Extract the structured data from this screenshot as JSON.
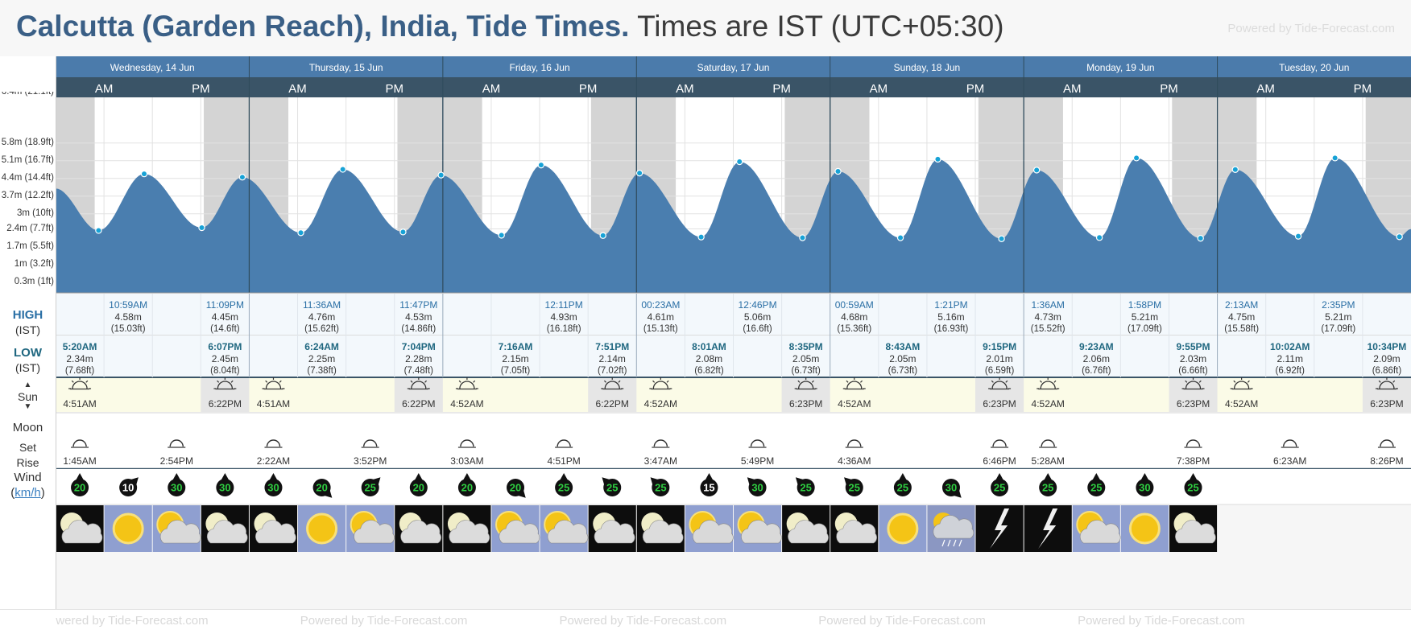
{
  "header": {
    "title_bold": "Calcutta (Garden Reach), India, Tide Times.",
    "title_rest": "Times are IST (UTC+05:30)",
    "powered": "Powered by Tide-Forecast.com"
  },
  "days": [
    {
      "label": "Wednesday, 14 Jun"
    },
    {
      "label": "Thursday, 15 Jun"
    },
    {
      "label": "Friday, 16 Jun"
    },
    {
      "label": "Saturday, 17 Jun"
    },
    {
      "label": "Sunday, 18 Jun"
    },
    {
      "label": "Monday, 19 Jun"
    },
    {
      "label": "Tuesday, 20 Jun"
    }
  ],
  "am": "AM",
  "pm": "PM",
  "labels": {
    "high": "HIGH",
    "low": "LOW",
    "tz": "(IST)",
    "sun": "Sun",
    "moon": "Moon",
    "set": "Set",
    "rise": "Rise",
    "wind": "Wind",
    "wind_unit": "km/h",
    "wind_open": "(",
    "wind_close": ")"
  },
  "chart_data": {
    "type": "area",
    "xlabel": "",
    "ylabel": "",
    "y_ticks": [
      "0.3m (1ft)",
      "1m (3.2ft)",
      "1.7m (5.5ft)",
      "2.4m (7.7ft)",
      "3m (10ft)",
      "3.7m (12.2ft)",
      "4.4m (14.4ft)",
      "5.1m (16.7ft)",
      "5.8m (18.9ft)"
    ],
    "y_tick_values": [
      0.3,
      1.0,
      1.7,
      2.4,
      3.0,
      3.7,
      4.4,
      5.1,
      5.8
    ],
    "y_top_tick": "6.4m (21.1ft)",
    "ylim": [
      0.3,
      6.4
    ],
    "x_range_hours": [
      0,
      168
    ],
    "series": [
      {
        "points": [
          {
            "h": 0,
            "m": 4.0
          },
          {
            "h": 5.33,
            "m": 2.34
          },
          {
            "h": 10.98,
            "m": 4.58
          },
          {
            "h": 18.12,
            "m": 2.45
          },
          {
            "h": 23.15,
            "m": 4.45
          },
          {
            "h": 30.4,
            "m": 2.25
          },
          {
            "h": 35.6,
            "m": 4.76
          },
          {
            "h": 43.07,
            "m": 2.28
          },
          {
            "h": 47.78,
            "m": 4.53
          },
          {
            "h": 55.27,
            "m": 2.15
          },
          {
            "h": 60.18,
            "m": 4.93
          },
          {
            "h": 67.85,
            "m": 2.14
          },
          {
            "h": 72.38,
            "m": 4.61
          },
          {
            "h": 80.02,
            "m": 2.08
          },
          {
            "h": 84.77,
            "m": 5.06
          },
          {
            "h": 92.58,
            "m": 2.05
          },
          {
            "h": 96.98,
            "m": 4.68
          },
          {
            "h": 104.72,
            "m": 2.05
          },
          {
            "h": 109.35,
            "m": 5.16
          },
          {
            "h": 117.25,
            "m": 2.01
          },
          {
            "h": 121.6,
            "m": 4.73
          },
          {
            "h": 129.38,
            "m": 2.06
          },
          {
            "h": 133.97,
            "m": 5.21
          },
          {
            "h": 141.92,
            "m": 2.03
          },
          {
            "h": 146.22,
            "m": 4.75
          },
          {
            "h": 154.03,
            "m": 2.11
          },
          {
            "h": 158.58,
            "m": 5.21
          },
          {
            "h": 166.57,
            "m": 2.09
          },
          {
            "h": 168,
            "m": 2.4
          }
        ]
      }
    ],
    "night_periods_hours": [
      [
        0,
        4.85
      ],
      [
        18.37,
        28.85
      ],
      [
        42.37,
        52.87
      ],
      [
        66.37,
        76.87
      ],
      [
        90.38,
        100.87
      ],
      [
        114.38,
        124.87
      ],
      [
        138.38,
        148.87
      ],
      [
        162.38,
        168
      ]
    ]
  },
  "highs": [
    {
      "h": 10.98,
      "time": "10:59AM",
      "m": "4.58m",
      "ft": "(15.03ft)"
    },
    {
      "h": 23.15,
      "time": "11:09PM",
      "m": "4.45m",
      "ft": "(14.6ft)"
    },
    {
      "h": 35.6,
      "time": "11:36AM",
      "m": "4.76m",
      "ft": "(15.62ft)"
    },
    {
      "h": 47.78,
      "time": "11:47PM",
      "m": "4.53m",
      "ft": "(14.86ft)"
    },
    {
      "h": 60.18,
      "time": "12:11PM",
      "m": "4.93m",
      "ft": "(16.18ft)"
    },
    {
      "h": 72.38,
      "time": "00:23AM",
      "m": "4.61m",
      "ft": "(15.13ft)"
    },
    {
      "h": 84.77,
      "time": "12:46PM",
      "m": "5.06m",
      "ft": "(16.6ft)"
    },
    {
      "h": 96.98,
      "time": "00:59AM",
      "m": "4.68m",
      "ft": "(15.36ft)"
    },
    {
      "h": 109.35,
      "time": "1:21PM",
      "m": "5.16m",
      "ft": "(16.93ft)"
    },
    {
      "h": 121.6,
      "time": "1:36AM",
      "m": "4.73m",
      "ft": "(15.52ft)"
    },
    {
      "h": 133.97,
      "time": "1:58PM",
      "m": "5.21m",
      "ft": "(17.09ft)"
    },
    {
      "h": 146.22,
      "time": "2:13AM",
      "m": "4.75m",
      "ft": "(15.58ft)"
    },
    {
      "h": 158.58,
      "time": "2:35PM",
      "m": "5.21m",
      "ft": "(17.09ft)"
    }
  ],
  "lows": [
    {
      "h": 5.33,
      "time": "5:20AM",
      "m": "2.34m",
      "ft": "(7.68ft)"
    },
    {
      "h": 18.12,
      "time": "6:07PM",
      "m": "2.45m",
      "ft": "(8.04ft)"
    },
    {
      "h": 30.4,
      "time": "6:24AM",
      "m": "2.25m",
      "ft": "(7.38ft)"
    },
    {
      "h": 43.07,
      "time": "7:04PM",
      "m": "2.28m",
      "ft": "(7.48ft)"
    },
    {
      "h": 55.27,
      "time": "7:16AM",
      "m": "2.15m",
      "ft": "(7.05ft)"
    },
    {
      "h": 67.85,
      "time": "7:51PM",
      "m": "2.14m",
      "ft": "(7.02ft)"
    },
    {
      "h": 80.02,
      "time": "8:01AM",
      "m": "2.08m",
      "ft": "(6.82ft)"
    },
    {
      "h": 92.58,
      "time": "8:35PM",
      "m": "2.05m",
      "ft": "(6.73ft)"
    },
    {
      "h": 104.72,
      "time": "8:43AM",
      "m": "2.05m",
      "ft": "(6.73ft)"
    },
    {
      "h": 117.25,
      "time": "9:15PM",
      "m": "2.01m",
      "ft": "(6.59ft)"
    },
    {
      "h": 129.38,
      "time": "9:23AM",
      "m": "2.06m",
      "ft": "(6.76ft)"
    },
    {
      "h": 141.92,
      "time": "9:55PM",
      "m": "2.03m",
      "ft": "(6.66ft)"
    },
    {
      "h": 154.03,
      "time": "10:02AM",
      "m": "2.11m",
      "ft": "(6.92ft)"
    },
    {
      "h": 166.57,
      "time": "10:34PM",
      "m": "2.09m",
      "ft": "(6.86ft)"
    }
  ],
  "sun": [
    {
      "rise": "4:51AM",
      "set": "6:22PM"
    },
    {
      "rise": "4:51AM",
      "set": "6:22PM"
    },
    {
      "rise": "4:52AM",
      "set": "6:22PM"
    },
    {
      "rise": "4:52AM",
      "set": "6:23PM"
    },
    {
      "rise": "4:52AM",
      "set": "6:23PM"
    },
    {
      "rise": "4:52AM",
      "set": "6:23PM"
    },
    {
      "rise": "4:52AM",
      "set": "6:23PM"
    }
  ],
  "moon": [
    {
      "slot": 0,
      "time": "1:45AM"
    },
    {
      "slot": 2,
      "time": "2:54PM"
    },
    {
      "slot": 4,
      "time": "2:22AM"
    },
    {
      "slot": 6,
      "time": "3:52PM"
    },
    {
      "slot": 8,
      "time": "3:03AM"
    },
    {
      "slot": 10,
      "time": "4:51PM"
    },
    {
      "slot": 12,
      "time": "3:47AM"
    },
    {
      "slot": 14,
      "time": "5:49PM"
    },
    {
      "slot": 16,
      "time": "4:36AM"
    },
    {
      "slot": 19,
      "time": "6:46PM"
    },
    {
      "slot": 20,
      "time": "5:28AM"
    },
    {
      "slot": 23,
      "time": "7:38PM"
    },
    {
      "slot": 25,
      "time": "6:23AM"
    },
    {
      "slot": 27,
      "time": "8:26PM"
    }
  ],
  "wind": [
    {
      "speed": "20",
      "dir": "n",
      "color": "#2ecc40"
    },
    {
      "speed": "10",
      "dir": "ne",
      "color": "#ffffff"
    },
    {
      "speed": "30",
      "dir": "n",
      "color": "#2ecc40"
    },
    {
      "speed": "30",
      "dir": "n",
      "color": "#2ecc40"
    },
    {
      "speed": "30",
      "dir": "n",
      "color": "#2ecc40"
    },
    {
      "speed": "20",
      "dir": "se",
      "color": "#2ecc40"
    },
    {
      "speed": "25",
      "dir": "ne",
      "color": "#2ecc40"
    },
    {
      "speed": "20",
      "dir": "n",
      "color": "#2ecc40"
    },
    {
      "speed": "20",
      "dir": "n",
      "color": "#2ecc40"
    },
    {
      "speed": "20",
      "dir": "se",
      "color": "#2ecc40"
    },
    {
      "speed": "25",
      "dir": "n",
      "color": "#2ecc40"
    },
    {
      "speed": "25",
      "dir": "nw",
      "color": "#2ecc40"
    },
    {
      "speed": "25",
      "dir": "nw",
      "color": "#2ecc40"
    },
    {
      "speed": "15",
      "dir": "n",
      "color": "#ffffff"
    },
    {
      "speed": "30",
      "dir": "nw",
      "color": "#2ecc40"
    },
    {
      "speed": "25",
      "dir": "nw",
      "color": "#2ecc40"
    },
    {
      "speed": "25",
      "dir": "nw",
      "color": "#2ecc40"
    },
    {
      "speed": "25",
      "dir": "n",
      "color": "#2ecc40"
    },
    {
      "speed": "30",
      "dir": "se",
      "color": "#2ecc40"
    },
    {
      "speed": "25",
      "dir": "n",
      "color": "#2ecc40"
    },
    {
      "speed": "25",
      "dir": "n",
      "color": "#2ecc40"
    },
    {
      "speed": "25",
      "dir": "n",
      "color": "#2ecc40"
    },
    {
      "speed": "30",
      "dir": "n",
      "color": "#2ecc40"
    },
    {
      "speed": "25",
      "dir": "n",
      "color": "#2ecc40"
    }
  ],
  "weather": [
    "moon-cloud-icon",
    "sun-icon",
    "sun-cloud-icon",
    "moon-cloud-icon",
    "moon-cloud-icon",
    "sun-icon",
    "sun-cloud-icon",
    "moon-cloud-icon",
    "moon-cloud-icon",
    "sun-cloud-icon",
    "sun-cloud-icon",
    "moon-cloud-icon",
    "moon-cloud-icon",
    "sun-cloud-icon",
    "sun-cloud-icon",
    "moon-cloud-icon",
    "moon-cloud-icon",
    "sun-icon",
    "sun-rain-icon",
    "night-thunderstorm-icon",
    "night-thunderstorm-icon",
    "sun-cloud-icon",
    "sun-icon",
    "moon-cloud-icon"
  ],
  "colors": {
    "tide_fill": "#4a7eaf",
    "night_band": "#d4d4d4",
    "header_day": "#4b7bab",
    "header_ampm": "#3a5467",
    "high_label": "#2a6fa5",
    "low_label": "#1f6780",
    "sun_bg": "#fbfbe7",
    "sun_set_bg": "#e6e6e6"
  }
}
